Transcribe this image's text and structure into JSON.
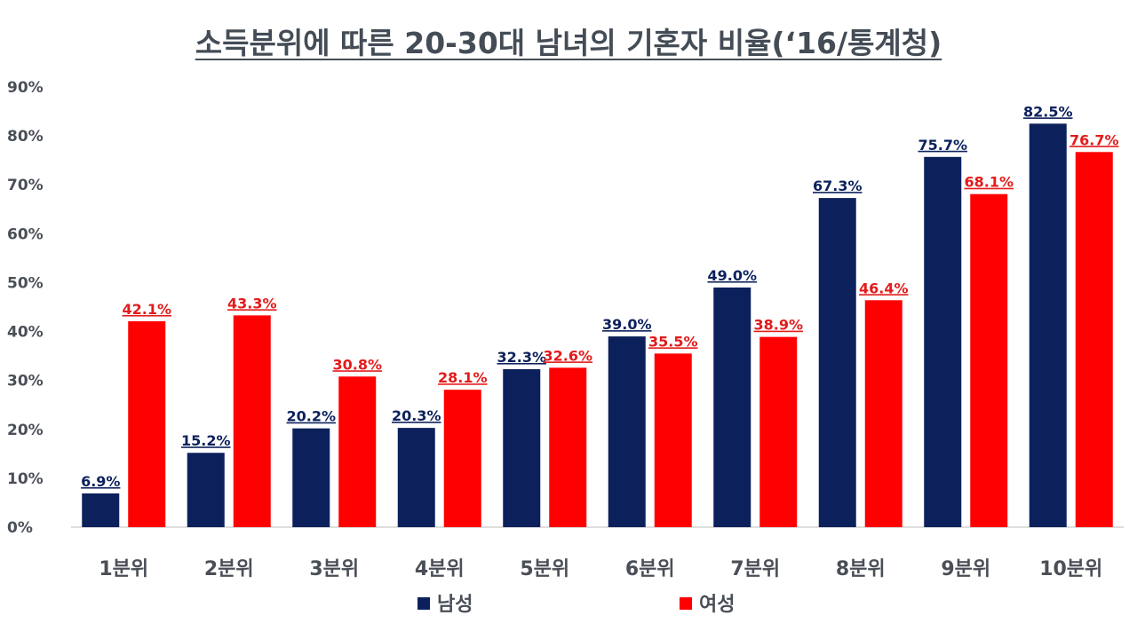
{
  "chart_data": {
    "type": "bar",
    "title": "소득분위에 따른 20-30대 남녀의 기혼자 비율(‘16/통계청)",
    "categories": [
      "1분위",
      "2분위",
      "3분위",
      "4분위",
      "5분위",
      "6분위",
      "7분위",
      "8분위",
      "9분위",
      "10분위"
    ],
    "series": [
      {
        "name": "남성",
        "color": "#0c215c",
        "values": [
          6.9,
          15.2,
          20.2,
          20.3,
          32.3,
          39.0,
          49.0,
          67.3,
          75.7,
          82.5
        ],
        "labels": [
          "6.9%",
          "15.2%",
          "20.2%",
          "20.3%",
          "32.3%",
          "39.0%",
          "49.0%",
          "67.3%",
          "75.7%",
          "82.5%"
        ],
        "label_color": "#0c215c"
      },
      {
        "name": "여성",
        "color": "#ff0000",
        "values": [
          42.1,
          43.3,
          30.8,
          28.1,
          32.6,
          35.5,
          38.9,
          46.4,
          68.1,
          76.7
        ],
        "labels": [
          "42.1%",
          "43.3%",
          "30.8%",
          "28.1%",
          "32.6%",
          "35.5%",
          "38.9%",
          "46.4%",
          "68.1%",
          "76.7%"
        ],
        "label_color": "#e31b1b"
      }
    ],
    "ylim": [
      0,
      90
    ],
    "yticks": [
      0,
      10,
      20,
      30,
      40,
      50,
      60,
      70,
      80,
      90
    ],
    "ytick_labels": [
      "0%",
      "10%",
      "20%",
      "30%",
      "40%",
      "50%",
      "60%",
      "70%",
      "80%",
      "90%"
    ],
    "grid": false,
    "legend": "bottom-center"
  }
}
